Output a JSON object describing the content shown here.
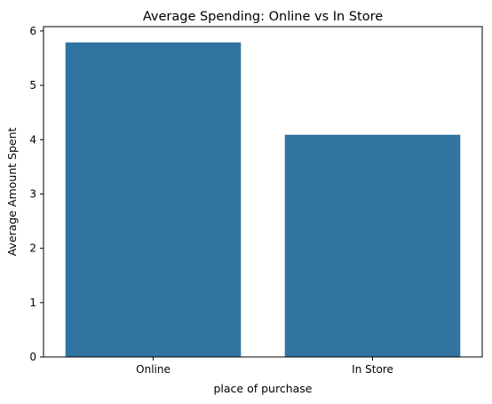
{
  "chart_data": {
    "type": "bar",
    "title": "Average Spending: Online vs In Store",
    "xlabel": "place of purchase",
    "ylabel": "Average Amount Spent",
    "categories": [
      "Online",
      "In Store"
    ],
    "values": [
      5.79,
      4.09
    ],
    "ylim": [
      0,
      6.08
    ],
    "yticks": [
      0,
      1,
      2,
      3,
      4,
      5,
      6
    ],
    "bar_color": "#3274a1",
    "grid": false,
    "legend": "none"
  }
}
